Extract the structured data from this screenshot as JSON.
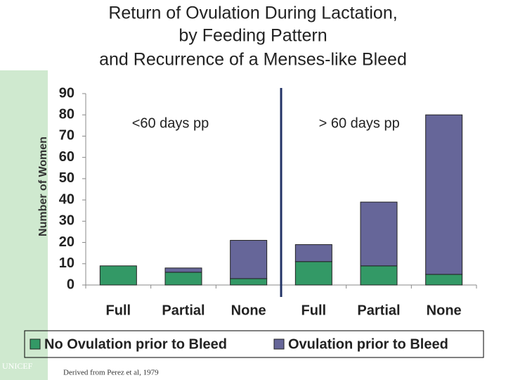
{
  "chart_data": {
    "type": "stacked_bar",
    "title": [
      "Return of Ovulation During Lactation,",
      "by Feeding Pattern",
      "and Recurrence of a Menses-like Bleed"
    ],
    "y_label": "Number of Women",
    "categories": [
      "Full",
      "Partial",
      "None",
      "Full",
      "Partial",
      "None"
    ],
    "series": [
      {
        "name": "No Ovulation prior to Bleed",
        "color": "#339966",
        "values": [
          9,
          6,
          3,
          11,
          9,
          5
        ]
      },
      {
        "name": "Ovulation prior to Bleed",
        "color": "#666699",
        "values": [
          0,
          2,
          18,
          8,
          30,
          75
        ]
      }
    ],
    "annotations": [
      "<60 days pp",
      "> 60 days pp"
    ],
    "ylim": [
      0,
      90
    ],
    "yticks": [
      0,
      10,
      20,
      30,
      40,
      50,
      60,
      70,
      80,
      90
    ],
    "grid": false,
    "legend": "bottom"
  },
  "footer": {
    "organization": "UNICEF",
    "source": "Derived from Perez et al, 1979"
  }
}
